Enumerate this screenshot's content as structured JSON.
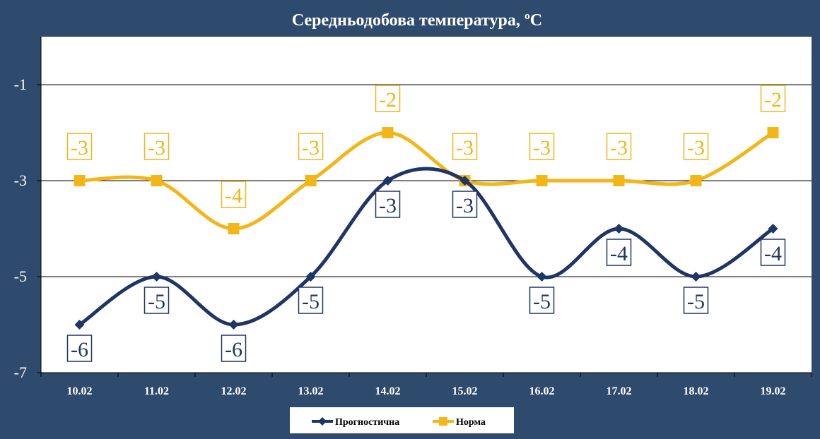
{
  "chart_data": {
    "type": "line",
    "title": "Середньодобова температура, ºС",
    "categories": [
      "10.02",
      "11.02",
      "12.02",
      "13.02",
      "14.02",
      "15.02",
      "16.02",
      "17.02",
      "18.02",
      "19.02"
    ],
    "series": [
      {
        "name": "Прогностична",
        "values": [
          -6,
          -5,
          -6,
          -5,
          -3,
          -3,
          -5,
          -4,
          -5,
          -4
        ],
        "color": "#1f3564",
        "marker": "diamond"
      },
      {
        "name": "Норма",
        "values": [
          -3,
          -3,
          -4,
          -3,
          -2,
          -3,
          -3,
          -3,
          -3,
          -2
        ],
        "color": "#f2b619",
        "marker": "square"
      }
    ],
    "yticks": [
      -1,
      -3,
      -5,
      -7
    ],
    "ylim": [
      -7,
      0
    ],
    "grid": true,
    "smooth": true,
    "data_labels": true,
    "legend_position": "bottom",
    "colors": {
      "background": "#2e4a6c",
      "plot_area": "#ffffff",
      "text": "#ffffff"
    }
  }
}
